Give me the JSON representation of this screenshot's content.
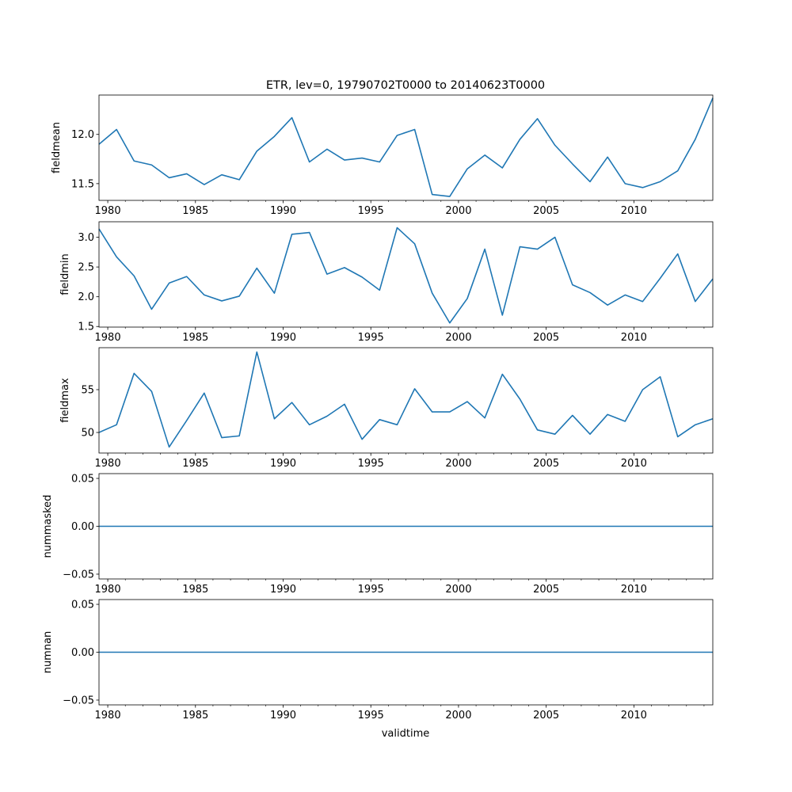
{
  "figure": {
    "title": "ETR, lev=0, 19790702T0000 to 20140623T0000",
    "xlabel": "validtime"
  },
  "chart_data": {
    "type": "line",
    "title": "ETR, lev=0, 19790702T0000 to 20140623T0000",
    "xlabel": "validtime",
    "x": [
      1979.5,
      1980.5,
      1981.5,
      1982.5,
      1983.5,
      1984.5,
      1985.5,
      1986.5,
      1987.5,
      1988.5,
      1989.5,
      1990.5,
      1991.5,
      1992.5,
      1993.5,
      1994.5,
      1995.5,
      1996.5,
      1997.5,
      1998.5,
      1999.5,
      2000.5,
      2001.5,
      2002.5,
      2003.5,
      2004.5,
      2005.5,
      2006.5,
      2007.5,
      2008.5,
      2009.5,
      2010.5,
      2011.5,
      2012.5,
      2013.5,
      2014.5
    ],
    "xlim": [
      1979.5,
      2014.5
    ],
    "xticks": [
      1980,
      1985,
      1990,
      1995,
      2000,
      2005,
      2010
    ],
    "line_color": "#1f77b4",
    "panels": [
      {
        "ylabel": "fieldmean",
        "ylim": [
          11.33,
          12.4
        ],
        "yticks": [
          11.5,
          12.0
        ],
        "ytick_labels": [
          "11.5",
          "12.0"
        ],
        "values": [
          11.9,
          12.05,
          11.73,
          11.69,
          11.56,
          11.6,
          11.49,
          11.59,
          11.54,
          11.83,
          11.98,
          12.17,
          11.72,
          11.85,
          11.74,
          11.76,
          11.72,
          11.99,
          12.05,
          11.39,
          11.37,
          11.65,
          11.79,
          11.66,
          11.95,
          12.16,
          11.89,
          11.7,
          11.52,
          11.77,
          11.5,
          11.46,
          11.52,
          11.63,
          11.95,
          12.37
        ]
      },
      {
        "ylabel": "fieldmin",
        "ylim": [
          1.49,
          3.26
        ],
        "yticks": [
          1.5,
          2.0,
          2.5,
          3.0
        ],
        "ytick_labels": [
          "1.5",
          "2.0",
          "2.5",
          "3.0"
        ],
        "values": [
          3.14,
          2.67,
          2.35,
          1.79,
          2.23,
          2.34,
          2.03,
          1.93,
          2.01,
          2.48,
          2.06,
          3.05,
          3.08,
          2.38,
          2.49,
          2.33,
          2.11,
          3.16,
          2.89,
          2.06,
          1.56,
          1.97,
          2.8,
          1.69,
          2.84,
          2.8,
          3.0,
          2.2,
          2.07,
          1.86,
          2.03,
          1.92,
          2.31,
          2.72,
          1.92,
          2.3
        ]
      },
      {
        "ylabel": "fieldmax",
        "ylim": [
          47.6,
          59.9
        ],
        "yticks": [
          50,
          55
        ],
        "ytick_labels": [
          "50",
          "55"
        ],
        "values": [
          50.0,
          50.9,
          56.9,
          54.8,
          48.3,
          51.4,
          54.6,
          49.4,
          49.6,
          59.4,
          51.6,
          53.5,
          50.9,
          51.9,
          53.3,
          49.2,
          51.5,
          50.9,
          55.1,
          52.4,
          52.4,
          53.6,
          51.7,
          56.8,
          53.9,
          50.3,
          49.8,
          52.0,
          49.8,
          52.1,
          51.3,
          55.0,
          56.5,
          49.5,
          50.9,
          51.6
        ]
      },
      {
        "ylabel": "nummasked",
        "ylim": [
          -0.055,
          0.055
        ],
        "yticks": [
          -0.05,
          0.0,
          0.05
        ],
        "ytick_labels": [
          "−0.05",
          "0.00",
          "0.05"
        ],
        "values": [
          0,
          0,
          0,
          0,
          0,
          0,
          0,
          0,
          0,
          0,
          0,
          0,
          0,
          0,
          0,
          0,
          0,
          0,
          0,
          0,
          0,
          0,
          0,
          0,
          0,
          0,
          0,
          0,
          0,
          0,
          0,
          0,
          0,
          0,
          0,
          0
        ]
      },
      {
        "ylabel": "numnan",
        "ylim": [
          -0.055,
          0.055
        ],
        "yticks": [
          -0.05,
          0.0,
          0.05
        ],
        "ytick_labels": [
          "−0.05",
          "0.00",
          "0.05"
        ],
        "values": [
          0,
          0,
          0,
          0,
          0,
          0,
          0,
          0,
          0,
          0,
          0,
          0,
          0,
          0,
          0,
          0,
          0,
          0,
          0,
          0,
          0,
          0,
          0,
          0,
          0,
          0,
          0,
          0,
          0,
          0,
          0,
          0,
          0,
          0,
          0,
          0
        ]
      }
    ]
  }
}
